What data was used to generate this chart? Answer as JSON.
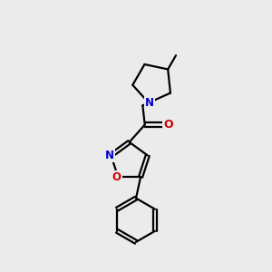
{
  "background_color": "#ebebeb",
  "bond_color": "#000000",
  "N_color": "#0000cc",
  "O_color": "#cc0000",
  "bond_width": 1.6,
  "figsize": [
    3.0,
    3.0
  ],
  "dpi": 100,
  "xlim": [
    0,
    10
  ],
  "ylim": [
    0,
    10
  ]
}
